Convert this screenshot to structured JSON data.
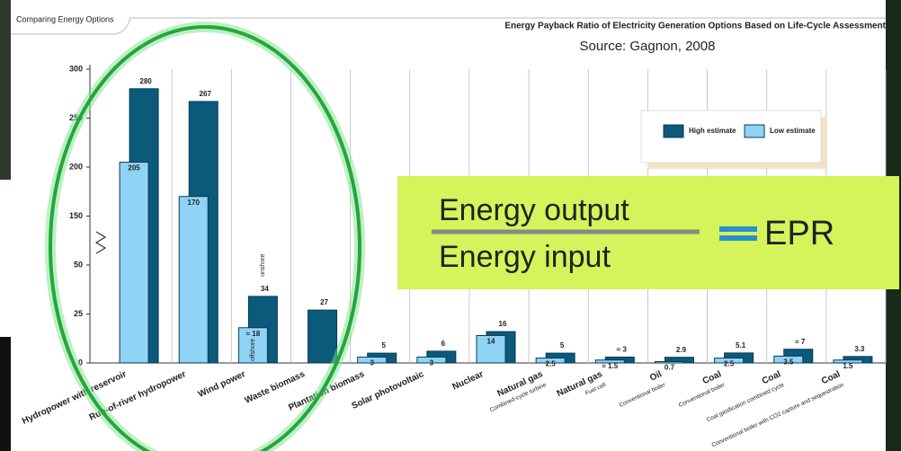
{
  "chart_data": {
    "type": "bar",
    "title": "Energy Payback Ratio of Electricity Generation Options Based on Life-Cycle Assessment",
    "subtitle": "Source: Gagnon, 2008",
    "categories": [
      "Hydropower with reservoir",
      "Run-of-river hydropower",
      "Wind power",
      "Waste biomass",
      "Plantation biomass",
      "Solar photovoltaic",
      "Nuclear",
      "Natural gas",
      "Natural gas",
      "Oil",
      "Coal",
      "Coal",
      "Coal"
    ],
    "subcategories": [
      null,
      null,
      null,
      null,
      null,
      null,
      null,
      "Combined-cycle turbine",
      "Fuel cell",
      "Conventional boiler",
      "Conventional boiler",
      "Coal gasification combined cycle",
      "Conventional boiler with CO2 capture and sequestration"
    ],
    "series": [
      {
        "name": "High estimate",
        "color": "#0b5a7c",
        "values": [
          280,
          267,
          34,
          27,
          5,
          6,
          16,
          5,
          3,
          2.9,
          5.1,
          7,
          3.3
        ],
        "value_labels": [
          "280",
          "267",
          "34",
          "27",
          "5",
          "6",
          "16",
          "5",
          "≈ 3",
          "2.9",
          "5.1",
          "≈ 7",
          "3.3"
        ]
      },
      {
        "name": "Low estimate",
        "color": "#8fd3f5",
        "values": [
          205,
          170,
          18,
          null,
          3,
          3,
          14,
          2.5,
          1.5,
          0.7,
          2.5,
          3.5,
          1.5
        ],
        "value_labels": [
          "205",
          "170",
          "≈ 18",
          null,
          "3",
          "3",
          "14",
          "2.5",
          "≈ 1.5",
          "0.7",
          "2.5",
          "3.5",
          "1.5"
        ]
      }
    ],
    "ylim": [
      0,
      300
    ],
    "yticks": [
      0,
      25,
      50,
      150,
      200,
      250,
      300
    ],
    "axis_break": true,
    "annotations": {
      "tab": "Comparing Energy Options",
      "onshore": "onshore",
      "offshore": "offshore",
      "numerator": "Energy output",
      "denominator": "Energy input",
      "result": "EPR"
    }
  }
}
